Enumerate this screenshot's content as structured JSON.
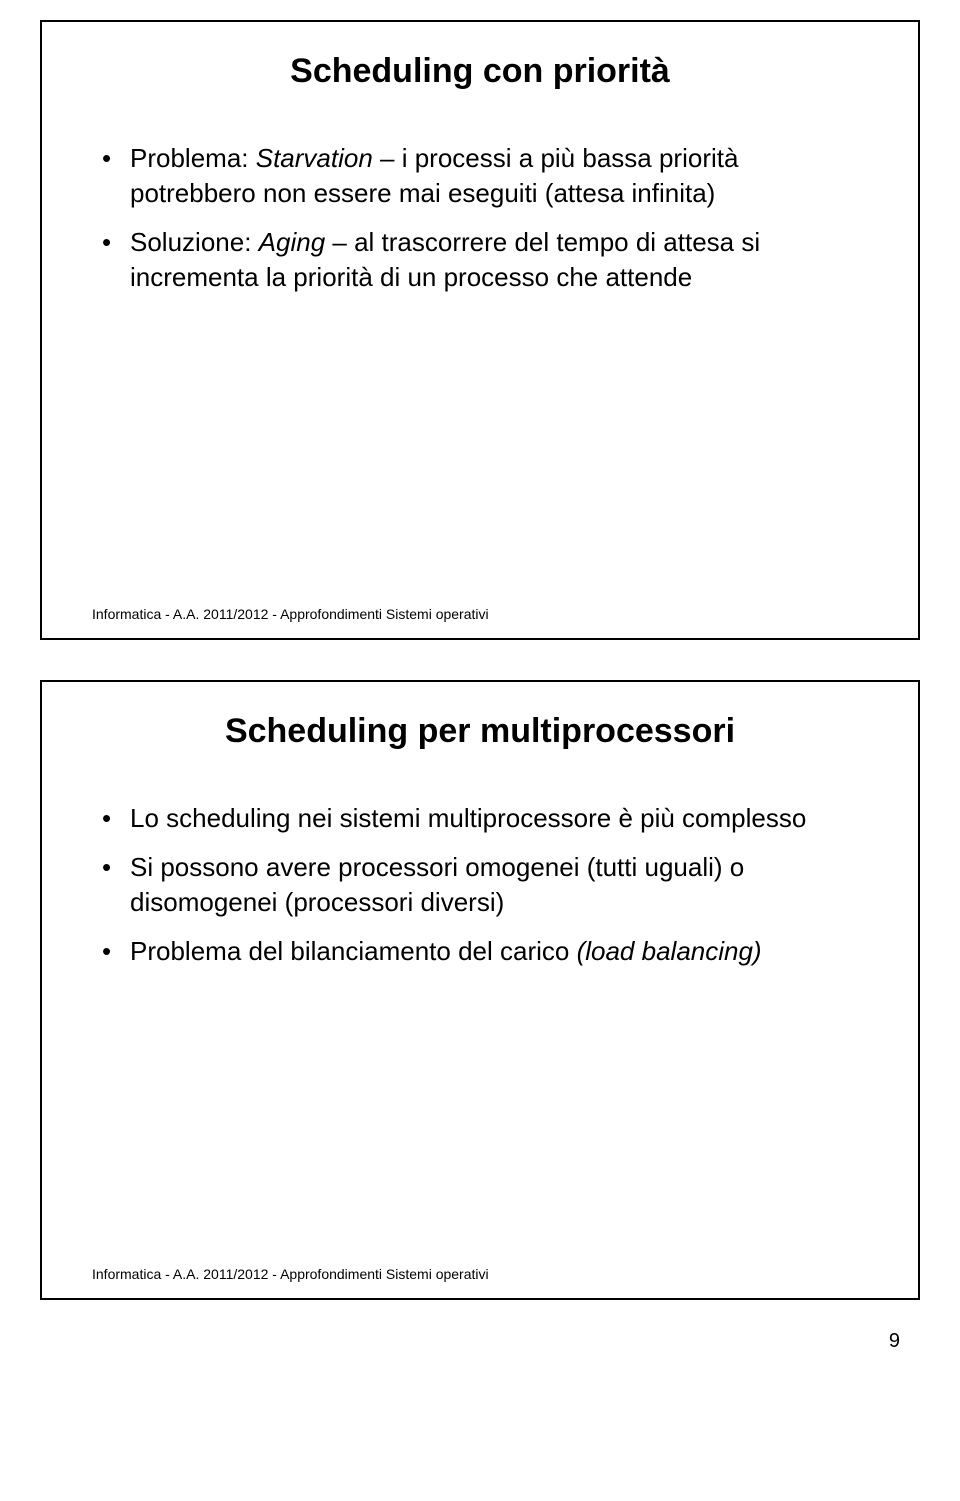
{
  "slide1": {
    "title": "Scheduling con priorità",
    "bullet1_prefix": "Problema: ",
    "bullet1_em": "Starvation",
    "bullet1_rest": " – i processi a più bassa priorità potrebbero non essere mai eseguiti (attesa infinita)",
    "bullet2_prefix": "Soluzione: ",
    "bullet2_em": "Aging",
    "bullet2_rest": " – al trascorrere del tempo di attesa si incrementa la priorità di un processo che attende",
    "footer": "Informatica - A.A. 2011/2012 - Approfondimenti Sistemi operativi"
  },
  "slide2": {
    "title": "Scheduling per multiprocessori",
    "bullet1": "Lo scheduling nei sistemi multiprocessore è più complesso",
    "bullet2": "Si possono avere processori omogenei (tutti uguali) o disomogenei (processori diversi)",
    "bullet3_prefix": "Problema del bilanciamento del carico ",
    "bullet3_em": "(load balancing)",
    "footer": "Informatica - A.A. 2011/2012 - Approfondimenti Sistemi operativi"
  },
  "page_number": "9",
  "style": {
    "border_color": "#000000",
    "background": "#ffffff",
    "text_color": "#000000",
    "title_fontsize": 34,
    "body_fontsize": 26,
    "footer_fontsize": 14,
    "font_family": "Arial"
  }
}
